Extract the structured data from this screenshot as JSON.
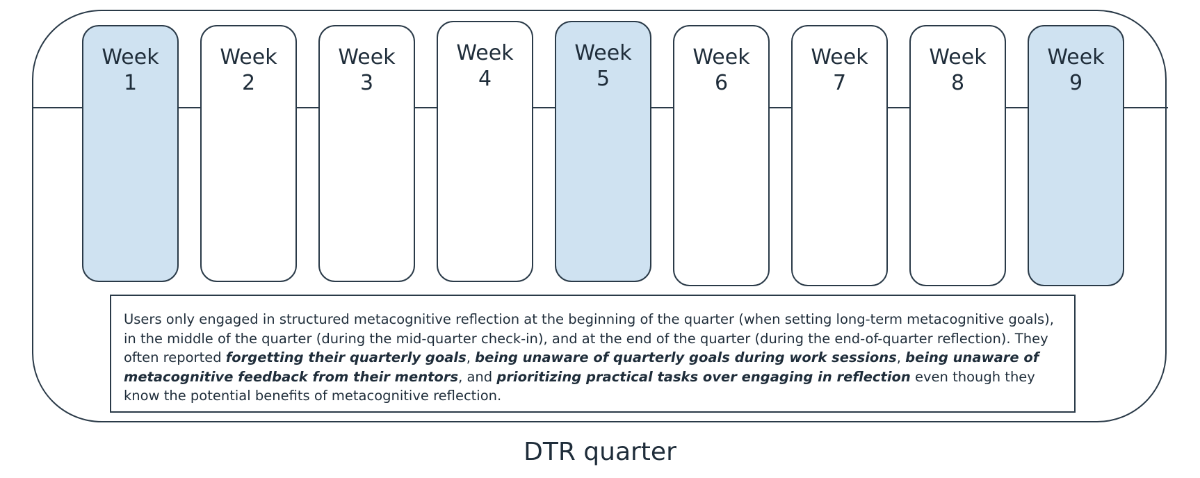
{
  "weeks": [
    {
      "label": "Week\n1",
      "highlighted": true
    },
    {
      "label": "Week\n2",
      "highlighted": false
    },
    {
      "label": "Week\n3",
      "highlighted": false
    },
    {
      "label": "Week\n4",
      "highlighted": false
    },
    {
      "label": "Week\n5",
      "highlighted": true
    },
    {
      "label": "Week\n6",
      "highlighted": false
    },
    {
      "label": "Week\n7",
      "highlighted": false
    },
    {
      "label": "Week\n8",
      "highlighted": false
    },
    {
      "label": "Week\n9",
      "highlighted": true
    }
  ],
  "finding": {
    "p1": "Users only engaged in structured metacognitive reflection at the beginning of the quarter (when setting long-term metacognitive goals), in the middle of the quarter (during the mid-quarter check-in), and at the end of the quarter (during the end-of-quarter reflection). They often reported ",
    "b1": "forgetting their quarterly goals",
    "s1": ", ",
    "b2": "being unaware of quarterly goals during work sessions",
    "s2": ", ",
    "b3": "being unaware of metacognitive feedback from their mentors",
    "s3": ", and ",
    "b4": "prioritizing practical tasks over engaging in reflection",
    "p2": " even though they know the potential benefits of metacognitive reflection."
  },
  "caption": "DTR quarter",
  "colors": {
    "highlight": "#cfe2f1",
    "stroke": "#2a3a48"
  }
}
